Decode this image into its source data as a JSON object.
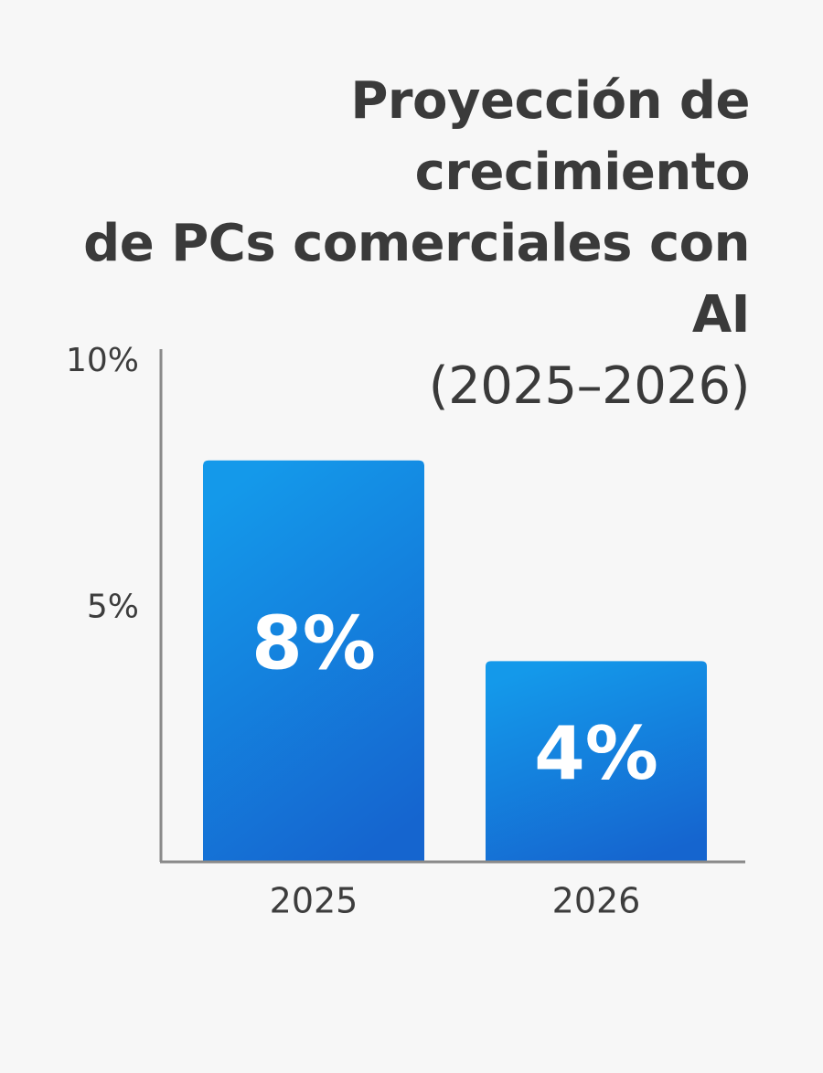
{
  "chart_data": {
    "type": "bar",
    "title_lines": [
      "Proyección de crecimiento",
      "de PCs comerciales con AI",
      "(2025–2026)"
    ],
    "categories": [
      "2025",
      "2026"
    ],
    "values": [
      8,
      4
    ],
    "data_labels": [
      "8%",
      "4%"
    ],
    "y_ticks": [
      {
        "value": 5,
        "label": "5%"
      },
      {
        "value": 10,
        "label": "10%"
      }
    ],
    "ylim": [
      0,
      10
    ],
    "grid": false,
    "legend": "none",
    "colors": {
      "bar_top": "#1499ea",
      "bar_bottom": "#1565cf",
      "axis": "#8a8a8a",
      "data_label": "#ffffff",
      "text": "#3d3d3d"
    }
  }
}
